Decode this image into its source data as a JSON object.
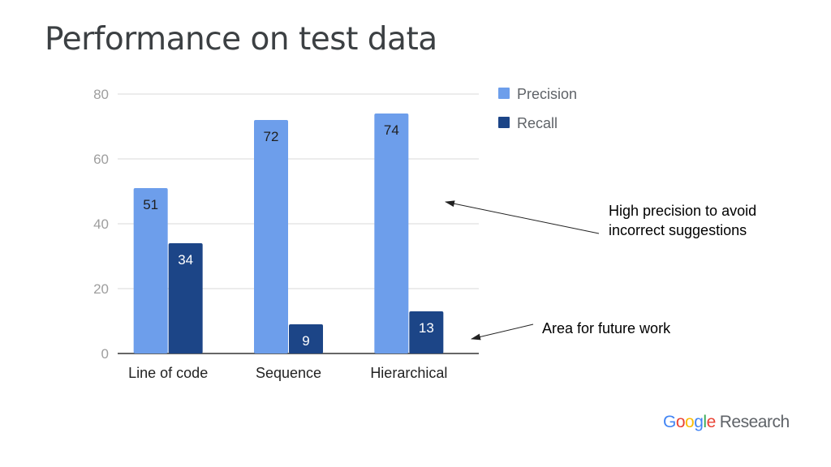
{
  "slide": {
    "title": "Performance on test data"
  },
  "annotations": {
    "precision_note": "High precision to avoid incorrect suggestions",
    "future_note": "Area for future work"
  },
  "logo": {
    "brand": "Google",
    "product": "Research"
  },
  "colors": {
    "precision": "#6d9eeb",
    "recall": "#1c4587",
    "grid": "#d9d9d9",
    "axis_text": "#9e9e9e"
  },
  "chart_data": {
    "type": "bar",
    "categories": [
      "Line of code",
      "Sequence",
      "Hierarchical"
    ],
    "series": [
      {
        "name": "Precision",
        "values": [
          51,
          72,
          74
        ]
      },
      {
        "name": "Recall",
        "values": [
          34,
          9,
          13
        ]
      }
    ],
    "title": "",
    "xlabel": "",
    "ylabel": "",
    "ylim": [
      0,
      80
    ],
    "yticks": [
      0,
      20,
      40,
      60,
      80
    ],
    "grid": true,
    "legend": "top-right"
  }
}
